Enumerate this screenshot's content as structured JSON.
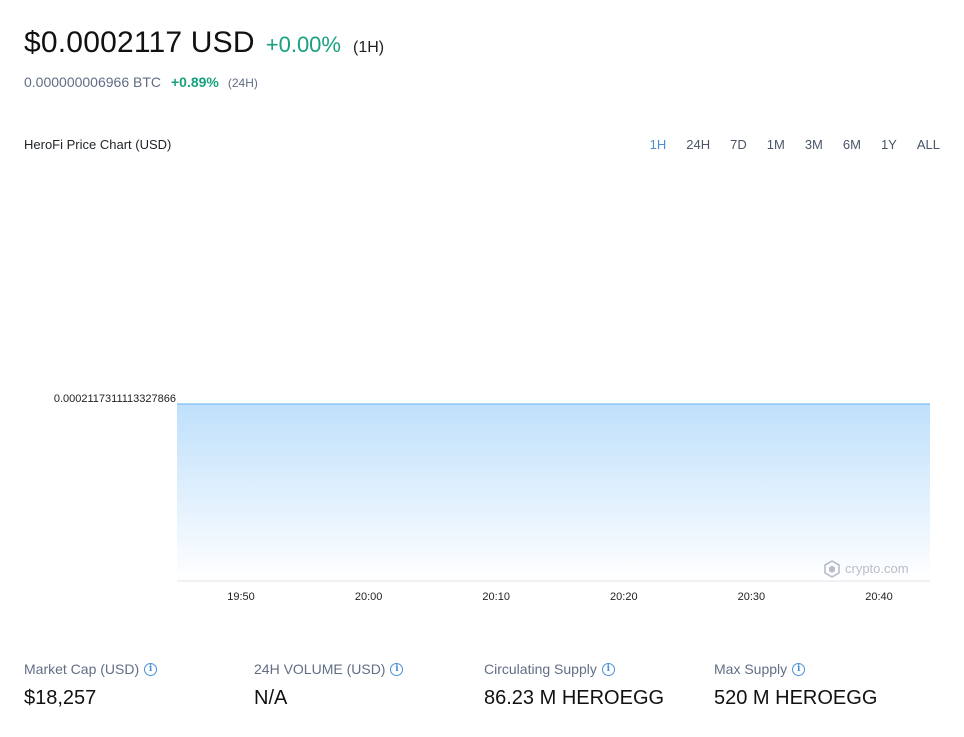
{
  "header": {
    "price": "$0.0002117 USD",
    "change": "+0.00%",
    "period": "(1H)",
    "btc_price": "0.000000006966 BTC",
    "btc_change": "+0.89%",
    "btc_period": "(24H)"
  },
  "chart_title": "HeroFi Price Chart (USD)",
  "ranges": [
    "1H",
    "24H",
    "7D",
    "1M",
    "3M",
    "6M",
    "1Y",
    "ALL"
  ],
  "active_range": "1H",
  "watermark": "crypto.com",
  "colors": {
    "accent": "#4a90d9",
    "positive": "#17a17e",
    "line": "#7cbef3",
    "fill_top": "#bfe0fb"
  },
  "chart_data": {
    "type": "area",
    "title": "HeroFi Price Chart (USD)",
    "x": [
      "19:45",
      "19:50",
      "20:00",
      "20:10",
      "20:20",
      "20:30",
      "20:40",
      "20:44"
    ],
    "values": [
      0.0002117311113327866,
      0.0002117311113327866,
      0.0002117311113327866,
      0.0002117311113327866,
      0.0002117311113327866,
      0.0002117311113327866,
      0.0002117311113327866,
      0.0002117311113327866
    ],
    "xticks": [
      "19:50",
      "20:00",
      "20:10",
      "20:20",
      "20:30",
      "20:40"
    ],
    "yticks": [
      "0.0002117311113327866"
    ],
    "xlabel": "",
    "ylabel": "",
    "grid": false
  },
  "stats": [
    {
      "label": "Market Cap (USD)",
      "value": "$18,257"
    },
    {
      "label": "24H VOLUME (USD)",
      "value": "N/A"
    },
    {
      "label": "Circulating Supply",
      "value": "86.23 M HEROEGG"
    },
    {
      "label": "Max Supply",
      "value": "520 M HEROEGG"
    }
  ]
}
